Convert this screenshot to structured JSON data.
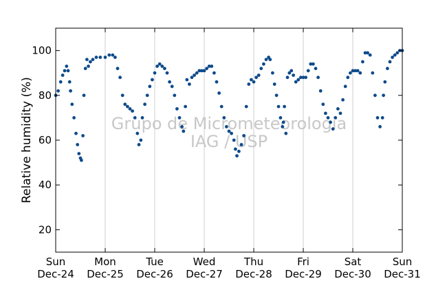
{
  "chart_data": {
    "type": "scatter",
    "title": "",
    "xlabel": "",
    "ylabel": "Relative humidity (%)",
    "watermark": [
      "Grupo de Micrometeorologia",
      "IAG / USP"
    ],
    "xlim": [
      0,
      7
    ],
    "ylim": [
      10,
      110
    ],
    "yticks": [
      20,
      40,
      60,
      80,
      100
    ],
    "xticks": [
      {
        "x": 0,
        "day": "Sun",
        "date": "Dec-24"
      },
      {
        "x": 1,
        "day": "Mon",
        "date": "Dec-25"
      },
      {
        "x": 2,
        "day": "Tue",
        "date": "Dec-26"
      },
      {
        "x": 3,
        "day": "Wed",
        "date": "Dec-27"
      },
      {
        "x": 4,
        "day": "Thu",
        "date": "Dec-28"
      },
      {
        "x": 5,
        "day": "Fri",
        "date": "Dec-29"
      },
      {
        "x": 6,
        "day": "Sat",
        "date": "Dec-30"
      },
      {
        "x": 7,
        "day": "Sun",
        "date": "Dec-31"
      }
    ],
    "grid": "vertical",
    "marker_color": "#0d4a8a",
    "series": [
      {
        "points": [
          [
            0.0,
            80
          ],
          [
            0.05,
            82
          ],
          [
            0.1,
            86
          ],
          [
            0.14,
            89
          ],
          [
            0.18,
            91
          ],
          [
            0.22,
            93
          ],
          [
            0.25,
            91
          ],
          [
            0.28,
            86
          ],
          [
            0.3,
            82
          ],
          [
            0.33,
            76
          ],
          [
            0.37,
            70
          ],
          [
            0.41,
            63
          ],
          [
            0.44,
            58
          ],
          [
            0.47,
            54
          ],
          [
            0.5,
            52
          ],
          [
            0.52,
            51
          ],
          [
            0.55,
            62
          ],
          [
            0.57,
            80
          ],
          [
            0.6,
            92
          ],
          [
            0.63,
            96
          ],
          [
            0.66,
            93
          ],
          [
            0.7,
            95
          ],
          [
            0.75,
            96
          ],
          [
            0.82,
            97
          ],
          [
            0.9,
            97
          ],
          [
            1.0,
            97
          ],
          [
            1.08,
            98
          ],
          [
            1.15,
            98
          ],
          [
            1.2,
            97
          ],
          [
            1.25,
            92
          ],
          [
            1.3,
            88
          ],
          [
            1.35,
            80
          ],
          [
            1.4,
            76
          ],
          [
            1.45,
            75
          ],
          [
            1.5,
            74
          ],
          [
            1.55,
            73
          ],
          [
            1.6,
            70
          ],
          [
            1.65,
            63
          ],
          [
            1.68,
            58
          ],
          [
            1.72,
            60
          ],
          [
            1.75,
            70
          ],
          [
            1.8,
            76
          ],
          [
            1.85,
            80
          ],
          [
            1.9,
            84
          ],
          [
            1.95,
            87
          ],
          [
            2.0,
            90
          ],
          [
            2.05,
            93
          ],
          [
            2.1,
            94
          ],
          [
            2.15,
            93
          ],
          [
            2.2,
            92
          ],
          [
            2.25,
            90
          ],
          [
            2.3,
            86
          ],
          [
            2.35,
            84
          ],
          [
            2.4,
            80
          ],
          [
            2.45,
            74
          ],
          [
            2.5,
            70
          ],
          [
            2.55,
            66
          ],
          [
            2.58,
            64
          ],
          [
            2.62,
            75
          ],
          [
            2.65,
            87
          ],
          [
            2.7,
            85
          ],
          [
            2.75,
            88
          ],
          [
            2.8,
            89
          ],
          [
            2.85,
            90
          ],
          [
            2.9,
            91
          ],
          [
            2.95,
            91
          ],
          [
            3.0,
            91
          ],
          [
            3.05,
            92
          ],
          [
            3.1,
            93
          ],
          [
            3.15,
            93
          ],
          [
            3.2,
            90
          ],
          [
            3.25,
            86
          ],
          [
            3.3,
            81
          ],
          [
            3.35,
            75
          ],
          [
            3.4,
            70
          ],
          [
            3.45,
            66
          ],
          [
            3.5,
            64
          ],
          [
            3.55,
            63
          ],
          [
            3.6,
            60
          ],
          [
            3.63,
            56
          ],
          [
            3.66,
            53
          ],
          [
            3.7,
            55
          ],
          [
            3.75,
            58
          ],
          [
            3.8,
            62
          ],
          [
            3.85,
            75
          ],
          [
            3.9,
            85
          ],
          [
            3.95,
            87
          ],
          [
            4.0,
            86
          ],
          [
            4.05,
            88
          ],
          [
            4.1,
            89
          ],
          [
            4.15,
            92
          ],
          [
            4.2,
            94
          ],
          [
            4.25,
            96
          ],
          [
            4.3,
            97
          ],
          [
            4.33,
            96
          ],
          [
            4.38,
            90
          ],
          [
            4.42,
            85
          ],
          [
            4.46,
            80
          ],
          [
            4.5,
            75
          ],
          [
            4.54,
            70
          ],
          [
            4.58,
            66
          ],
          [
            4.6,
            68
          ],
          [
            4.62,
            75
          ],
          [
            4.65,
            63
          ],
          [
            4.68,
            88
          ],
          [
            4.72,
            90
          ],
          [
            4.76,
            91
          ],
          [
            4.8,
            89
          ],
          [
            4.85,
            86
          ],
          [
            4.9,
            87
          ],
          [
            4.95,
            88
          ],
          [
            5.0,
            88
          ],
          [
            5.05,
            88
          ],
          [
            5.1,
            91
          ],
          [
            5.15,
            94
          ],
          [
            5.2,
            94
          ],
          [
            5.25,
            92
          ],
          [
            5.3,
            88
          ],
          [
            5.35,
            82
          ],
          [
            5.4,
            76
          ],
          [
            5.45,
            72
          ],
          [
            5.5,
            70
          ],
          [
            5.55,
            68
          ],
          [
            5.6,
            65
          ],
          [
            5.65,
            70
          ],
          [
            5.7,
            74
          ],
          [
            5.75,
            72
          ],
          [
            5.8,
            78
          ],
          [
            5.85,
            84
          ],
          [
            5.9,
            88
          ],
          [
            5.95,
            90
          ],
          [
            6.0,
            91
          ],
          [
            6.05,
            91
          ],
          [
            6.1,
            91
          ],
          [
            6.15,
            90
          ],
          [
            6.2,
            95
          ],
          [
            6.25,
            99
          ],
          [
            6.3,
            99
          ],
          [
            6.35,
            98
          ],
          [
            6.4,
            90
          ],
          [
            6.45,
            80
          ],
          [
            6.5,
            70
          ],
          [
            6.55,
            66
          ],
          [
            6.6,
            70
          ],
          [
            6.62,
            80
          ],
          [
            6.65,
            86
          ],
          [
            6.7,
            92
          ],
          [
            6.75,
            95
          ],
          [
            6.8,
            97
          ],
          [
            6.85,
            98
          ],
          [
            6.9,
            99
          ],
          [
            6.95,
            100
          ],
          [
            7.0,
            100
          ]
        ]
      }
    ]
  }
}
